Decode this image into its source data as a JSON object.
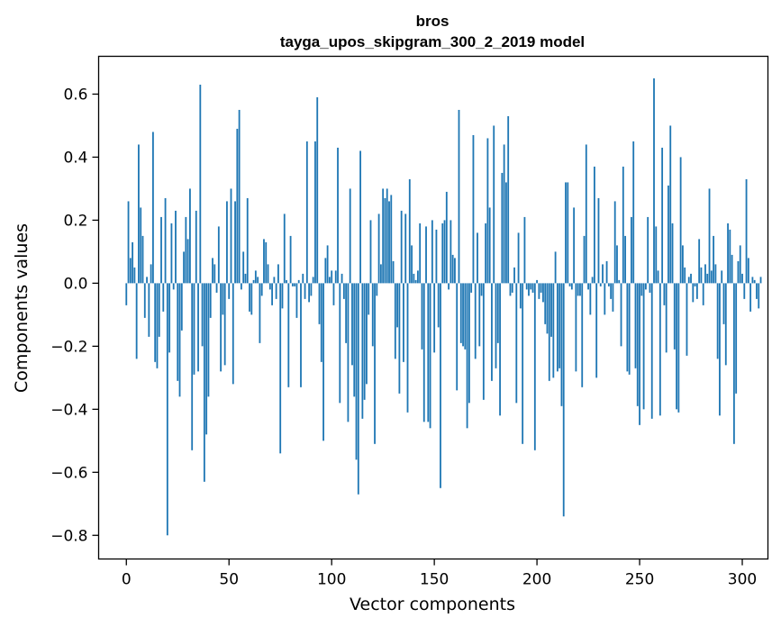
{
  "chart_data": {
    "type": "bar",
    "title": "bros",
    "subtitle": "tayga_upos_skipgram_300_2_2019 model",
    "xlabel": "Vector components",
    "ylabel": "Components values",
    "xlim": [
      -13.5,
      312.5
    ],
    "ylim": [
      -0.875,
      0.72
    ],
    "xticks": [
      0,
      50,
      100,
      150,
      200,
      250,
      300
    ],
    "xtick_labels": [
      "0",
      "50",
      "100",
      "150",
      "200",
      "250",
      "300"
    ],
    "yticks": [
      -0.8,
      -0.6,
      -0.4,
      -0.2,
      0.0,
      0.2,
      0.4,
      0.6
    ],
    "ytick_labels": [
      "−0.8",
      "−0.6",
      "−0.4",
      "−0.2",
      "0.0",
      "0.2",
      "0.4",
      "0.6"
    ],
    "bar_color": "#1f77b4",
    "grid": false,
    "legend": false,
    "values": [
      -0.07,
      0.26,
      0.08,
      0.13,
      0.05,
      -0.24,
      0.44,
      0.24,
      0.15,
      -0.11,
      0.02,
      -0.17,
      0.06,
      0.48,
      -0.25,
      -0.27,
      -0.17,
      0.21,
      -0.09,
      0.27,
      -0.8,
      -0.22,
      0.19,
      -0.02,
      0.23,
      -0.31,
      -0.36,
      -0.15,
      0.1,
      0.21,
      0.14,
      0.3,
      -0.53,
      -0.29,
      0.23,
      -0.28,
      0.63,
      -0.2,
      -0.63,
      -0.48,
      -0.36,
      -0.11,
      0.08,
      0.06,
      -0.03,
      0.18,
      -0.28,
      -0.1,
      -0.26,
      0.26,
      -0.05,
      0.3,
      -0.32,
      0.26,
      0.49,
      0.55,
      -0.02,
      0.1,
      0.03,
      0.27,
      -0.09,
      -0.1,
      0.01,
      0.04,
      0.02,
      -0.19,
      -0.04,
      0.14,
      0.13,
      0.06,
      -0.02,
      -0.07,
      0.02,
      -0.05,
      0.06,
      -0.54,
      -0.08,
      0.22,
      0.01,
      -0.33,
      0.15,
      -0.01,
      -0.01,
      -0.11,
      0.01,
      -0.33,
      0.03,
      -0.05,
      0.45,
      -0.06,
      -0.04,
      0.02,
      0.45,
      0.59,
      -0.13,
      -0.25,
      -0.5,
      0.08,
      0.12,
      0.02,
      0.04,
      -0.07,
      0.04,
      0.43,
      -0.38,
      0.03,
      -0.05,
      -0.19,
      -0.44,
      0.3,
      -0.26,
      -0.36,
      -0.56,
      -0.67,
      0.42,
      -0.43,
      -0.37,
      -0.32,
      -0.1,
      0.2,
      -0.2,
      -0.51,
      -0.04,
      0.22,
      0.06,
      0.3,
      0.27,
      0.3,
      0.26,
      0.28,
      0.07,
      -0.24,
      -0.14,
      -0.35,
      0.23,
      -0.25,
      0.22,
      -0.41,
      0.33,
      0.12,
      0.03,
      0.01,
      0.04,
      0.19,
      -0.21,
      -0.44,
      0.18,
      -0.44,
      -0.46,
      0.2,
      -0.22,
      0.17,
      -0.14,
      -0.65,
      0.19,
      0.2,
      0.29,
      -0.02,
      0.2,
      0.09,
      0.08,
      -0.34,
      0.55,
      -0.19,
      -0.2,
      -0.21,
      -0.46,
      -0.38,
      -0.03,
      0.47,
      -0.24,
      0.16,
      -0.2,
      -0.04,
      -0.37,
      0.19,
      0.46,
      0.24,
      -0.31,
      0.5,
      -0.27,
      -0.19,
      -0.42,
      0.35,
      0.44,
      0.32,
      0.53,
      -0.04,
      -0.03,
      0.05,
      -0.38,
      0.16,
      -0.08,
      -0.51,
      0.21,
      -0.02,
      -0.04,
      -0.02,
      -0.03,
      -0.53,
      0.01,
      -0.05,
      -0.03,
      -0.06,
      -0.13,
      -0.16,
      -0.31,
      -0.17,
      -0.3,
      0.1,
      -0.28,
      -0.27,
      -0.39,
      -0.74,
      0.32,
      0.32,
      -0.01,
      -0.02,
      0.24,
      -0.28,
      -0.04,
      -0.04,
      -0.33,
      0.15,
      0.44,
      -0.02,
      -0.1,
      0.02,
      0.37,
      -0.3,
      0.27,
      -0.01,
      0.06,
      -0.1,
      0.07,
      -0.01,
      -0.05,
      -0.09,
      0.26,
      0.12,
      0.01,
      -0.2,
      0.37,
      0.15,
      -0.28,
      -0.29,
      0.21,
      0.45,
      -0.27,
      -0.39,
      -0.45,
      -0.04,
      -0.4,
      -0.02,
      0.21,
      -0.03,
      -0.43,
      0.65,
      0.18,
      0.04,
      -0.42,
      0.43,
      -0.07,
      -0.22,
      0.31,
      0.5,
      0.19,
      -0.21,
      -0.4,
      -0.41,
      0.4,
      0.12,
      0.05,
      -0.23,
      0.02,
      0.03,
      -0.06,
      -0.01,
      -0.05,
      0.14,
      0.05,
      -0.07,
      0.06,
      0.03,
      0.3,
      0.04,
      0.15,
      0.06,
      -0.24,
      -0.42,
      0.04,
      -0.13,
      -0.26,
      0.19,
      0.17,
      0.09,
      -0.51,
      -0.35,
      0.07,
      0.12,
      0.03,
      -0.05,
      0.33,
      0.08,
      -0.09,
      0.02,
      0.01,
      -0.05,
      -0.08,
      0.02
    ]
  }
}
